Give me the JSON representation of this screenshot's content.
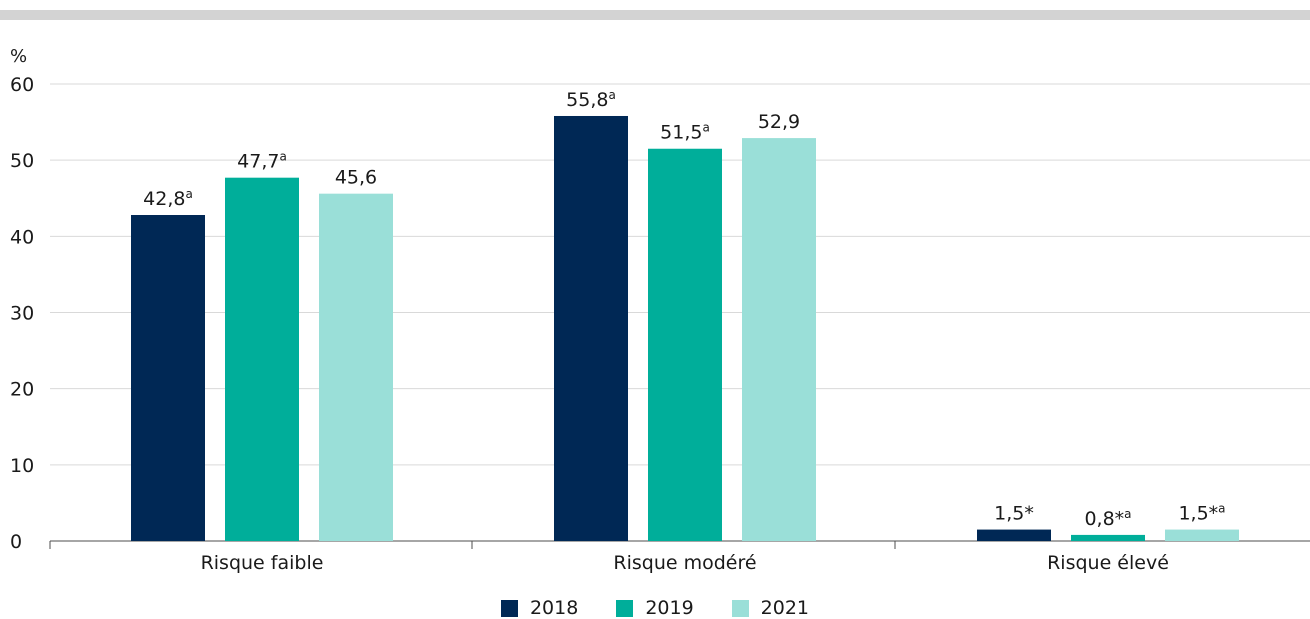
{
  "chart_data": {
    "type": "bar",
    "unit_label": "%",
    "categories": [
      "Risque faible",
      "Risque modéré",
      "Risque élevé"
    ],
    "series": [
      {
        "name": "2018",
        "color": "#002855",
        "values": [
          42.8,
          55.8,
          1.5
        ],
        "labels": [
          "42,8",
          "55,8",
          "1,5"
        ],
        "marks": [
          "a",
          "a",
          "*"
        ]
      },
      {
        "name": "2019",
        "color": "#00AE9A",
        "values": [
          47.7,
          51.5,
          0.8
        ],
        "labels": [
          "47,7",
          "51,5",
          "0,8"
        ],
        "marks": [
          "a",
          "a",
          "*a"
        ]
      },
      {
        "name": "2021",
        "color": "#9ADFD8",
        "values": [
          45.6,
          52.9,
          1.5
        ],
        "labels": [
          "45,6",
          "52,9",
          "1,5"
        ],
        "marks": [
          "",
          "",
          "*a"
        ]
      }
    ],
    "ylim": [
      0,
      60
    ],
    "yticks": [
      0,
      10,
      20,
      30,
      40,
      50,
      60
    ],
    "grid": true,
    "legend_position": "bottom-center",
    "colors": {
      "top_bar": "#D3D3D3",
      "grid": "#D9D9D9",
      "axis": "#4D4D4D"
    }
  }
}
